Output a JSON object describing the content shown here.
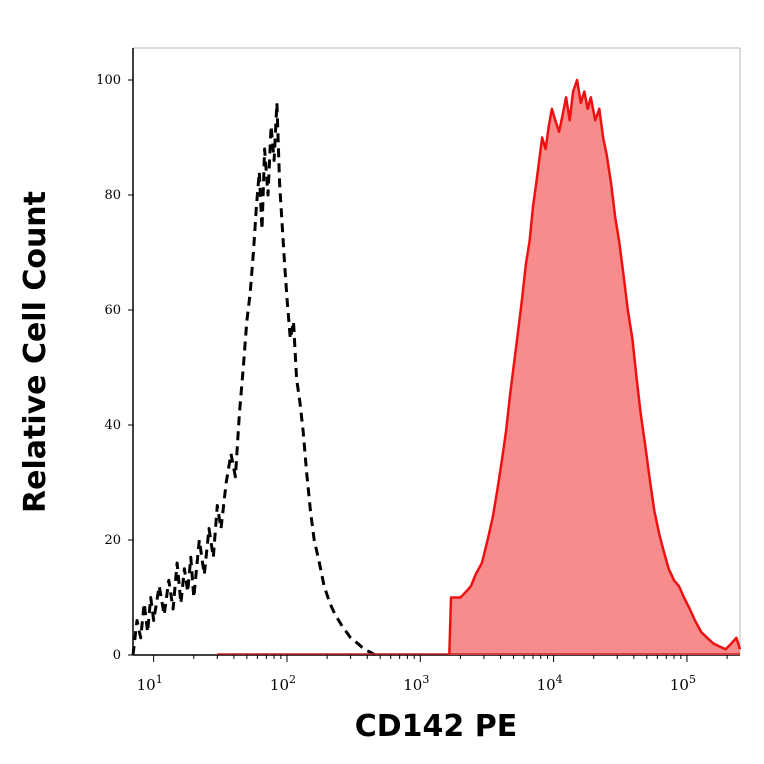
{
  "chart_data": {
    "type": "area",
    "title": "",
    "xlabel": "CD142 PE",
    "ylabel": "Relative Cell Count",
    "x_scale": "log",
    "xlim": [
      7,
      250000
    ],
    "ylim": [
      0,
      100
    ],
    "x_ticks": [
      {
        "value": 10,
        "base": "10",
        "exp": "1"
      },
      {
        "value": 100,
        "base": "10",
        "exp": "2"
      },
      {
        "value": 1000,
        "base": "10",
        "exp": "3"
      },
      {
        "value": 10000,
        "base": "10",
        "exp": "4"
      },
      {
        "value": 100000,
        "base": "10",
        "exp": "5"
      }
    ],
    "y_ticks": [
      "0",
      "20",
      "40",
      "60",
      "80",
      "100"
    ],
    "grid": false,
    "legend": "none",
    "series": [
      {
        "style": "dashed-outline",
        "color": "#000000",
        "points": [
          [
            7,
            0
          ],
          [
            7.5,
            6
          ],
          [
            8,
            3
          ],
          [
            8.5,
            9
          ],
          [
            9,
            4
          ],
          [
            9.5,
            10
          ],
          [
            10,
            6
          ],
          [
            11,
            12
          ],
          [
            12,
            7
          ],
          [
            13,
            13
          ],
          [
            14,
            8
          ],
          [
            15,
            16
          ],
          [
            16,
            9
          ],
          [
            17,
            15
          ],
          [
            18,
            11
          ],
          [
            19,
            17
          ],
          [
            20,
            10
          ],
          [
            22,
            20
          ],
          [
            24,
            14
          ],
          [
            26,
            22
          ],
          [
            28,
            17
          ],
          [
            30,
            26
          ],
          [
            32,
            22
          ],
          [
            35,
            30
          ],
          [
            38,
            35
          ],
          [
            41,
            31
          ],
          [
            44,
            42
          ],
          [
            47,
            50
          ],
          [
            50,
            58
          ],
          [
            53,
            63
          ],
          [
            56,
            70
          ],
          [
            59,
            78
          ],
          [
            62,
            84
          ],
          [
            65,
            74
          ],
          [
            68,
            88
          ],
          [
            72,
            80
          ],
          [
            76,
            92
          ],
          [
            80,
            86
          ],
          [
            84,
            96
          ],
          [
            88,
            82
          ],
          [
            92,
            75
          ],
          [
            96,
            68
          ],
          [
            100,
            62
          ],
          [
            106,
            55
          ],
          [
            112,
            58
          ],
          [
            118,
            48
          ],
          [
            125,
            44
          ],
          [
            132,
            39
          ],
          [
            140,
            32
          ],
          [
            150,
            25
          ],
          [
            160,
            20
          ],
          [
            175,
            16
          ],
          [
            190,
            12
          ],
          [
            210,
            9
          ],
          [
            230,
            7
          ],
          [
            260,
            5
          ],
          [
            300,
            3
          ],
          [
            340,
            2
          ],
          [
            380,
            1
          ],
          [
            420,
            0.5
          ],
          [
            460,
            0
          ]
        ]
      },
      {
        "style": "filled",
        "color": "#ee1111",
        "fill": "#f88c8c",
        "points": [
          [
            1650,
            0
          ],
          [
            1700,
            10
          ],
          [
            1850,
            10
          ],
          [
            2000,
            10
          ],
          [
            2200,
            11
          ],
          [
            2400,
            12
          ],
          [
            2600,
            14
          ],
          [
            2900,
            16
          ],
          [
            3200,
            20
          ],
          [
            3500,
            24
          ],
          [
            3800,
            29
          ],
          [
            4100,
            34
          ],
          [
            4400,
            39
          ],
          [
            4700,
            45
          ],
          [
            5000,
            50
          ],
          [
            5400,
            56
          ],
          [
            5800,
            62
          ],
          [
            6200,
            68
          ],
          [
            6600,
            72
          ],
          [
            7000,
            78
          ],
          [
            7400,
            82
          ],
          [
            7800,
            86
          ],
          [
            8200,
            90
          ],
          [
            8700,
            88
          ],
          [
            9200,
            92
          ],
          [
            9700,
            95
          ],
          [
            10300,
            93
          ],
          [
            11000,
            91
          ],
          [
            11700,
            94
          ],
          [
            12400,
            97
          ],
          [
            13200,
            93
          ],
          [
            14000,
            98
          ],
          [
            15000,
            100
          ],
          [
            16000,
            96
          ],
          [
            17000,
            98
          ],
          [
            18000,
            95
          ],
          [
            19000,
            97
          ],
          [
            20500,
            93
          ],
          [
            22000,
            95
          ],
          [
            23500,
            90
          ],
          [
            25000,
            87
          ],
          [
            27000,
            82
          ],
          [
            29000,
            76
          ],
          [
            31000,
            72
          ],
          [
            33500,
            66
          ],
          [
            36000,
            60
          ],
          [
            39000,
            55
          ],
          [
            42000,
            48
          ],
          [
            45000,
            42
          ],
          [
            49000,
            36
          ],
          [
            53000,
            30
          ],
          [
            57000,
            25
          ],
          [
            62000,
            21
          ],
          [
            67000,
            18
          ],
          [
            73000,
            15
          ],
          [
            80000,
            13
          ],
          [
            87000,
            12
          ],
          [
            95000,
            10
          ],
          [
            105000,
            8
          ],
          [
            115000,
            6
          ],
          [
            128000,
            4
          ],
          [
            142000,
            3
          ],
          [
            158000,
            2
          ],
          [
            175000,
            1.5
          ],
          [
            195000,
            1
          ],
          [
            215000,
            2
          ],
          [
            235000,
            3
          ],
          [
            250000,
            1
          ]
        ]
      }
    ]
  }
}
